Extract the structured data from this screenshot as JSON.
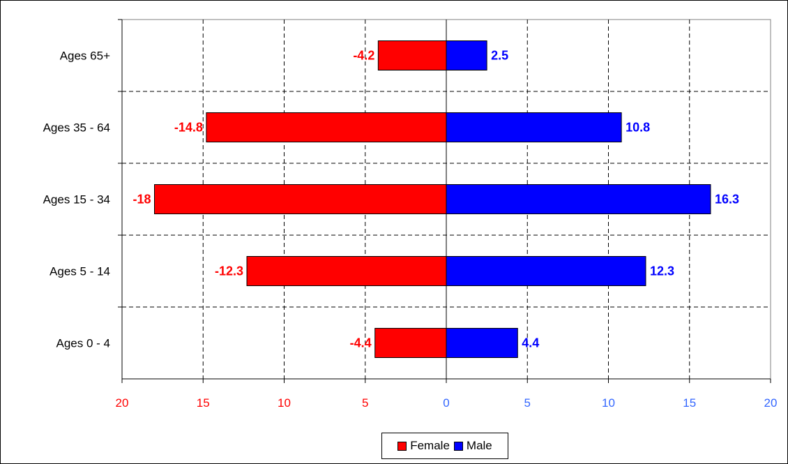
{
  "chart_data": {
    "type": "bar",
    "orientation": "horizontal",
    "layout": "population-pyramid",
    "categories": [
      "Ages 0 - 4",
      "Ages 5 - 14",
      "Ages 15 - 34",
      "Ages 35 - 64",
      "Ages 65+"
    ],
    "series": [
      {
        "name": "Female",
        "color": "#ff0000",
        "values": [
          -4.4,
          -12.3,
          -18,
          -14.8,
          -4.2
        ]
      },
      {
        "name": "Male",
        "color": "#0000ff",
        "values": [
          4.4,
          12.3,
          16.3,
          10.8,
          2.5
        ]
      }
    ],
    "xlim": [
      -20,
      20
    ],
    "xticks": [
      -20,
      -15,
      -10,
      -5,
      0,
      5,
      10,
      15,
      20
    ],
    "xtick_labels": [
      "20",
      "15",
      "10",
      "5",
      "0",
      "5",
      "10",
      "15",
      "20"
    ],
    "negative_tick_color": "#ff0000",
    "positive_tick_color": "#3366ff",
    "grid": true,
    "grid_style": "dashed",
    "legend_position": "bottom-center",
    "title": "",
    "xlabel": "",
    "ylabel": ""
  },
  "legend": {
    "items": [
      {
        "label": "Female",
        "color": "#ff0000"
      },
      {
        "label": "Male",
        "color": "#0000ff"
      }
    ]
  }
}
